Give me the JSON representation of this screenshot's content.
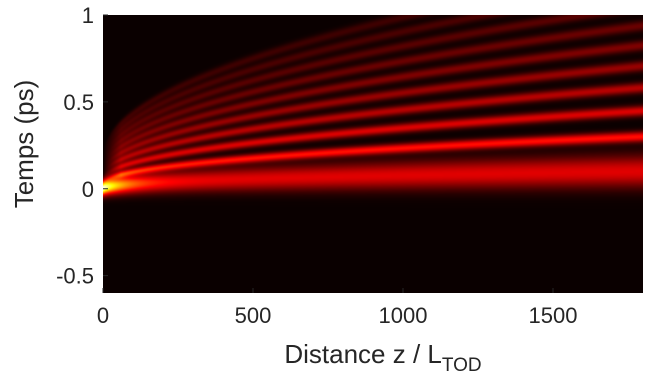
{
  "chart_data": {
    "type": "heatmap",
    "title": "",
    "xlabel": "Distance z / L",
    "xlabel_subscript": "TOD",
    "ylabel": "Temps (ps)",
    "xlim": [
      0,
      1800
    ],
    "ylim": [
      -0.6,
      1.0
    ],
    "x_ticks": [
      0,
      500,
      1000,
      1500
    ],
    "y_ticks": [
      1,
      0.5,
      0,
      -0.5
    ],
    "x_tick_labels": [
      "0",
      "500",
      "1000",
      "1500"
    ],
    "y_tick_labels": [
      "1",
      "0.5",
      "0",
      "-0.5"
    ],
    "colormap": "hot",
    "colors": {
      "background": "#0a0000",
      "low": "#3a0000",
      "mid": "#c00000",
      "high": "#ffea70",
      "peak": "#ffffff"
    },
    "grid": false,
    "field": {
      "main_peak_time_at_z1800": 0.1,
      "main_peak_time_at_z0": 0.0,
      "initial_width_ps": 0.04,
      "final_width_ps": 0.09,
      "sidelobe_count": 9,
      "sidelobe_first_time_at_z1800": 0.3,
      "sidelobe_spacing_growth": "sqrt(z)"
    }
  }
}
